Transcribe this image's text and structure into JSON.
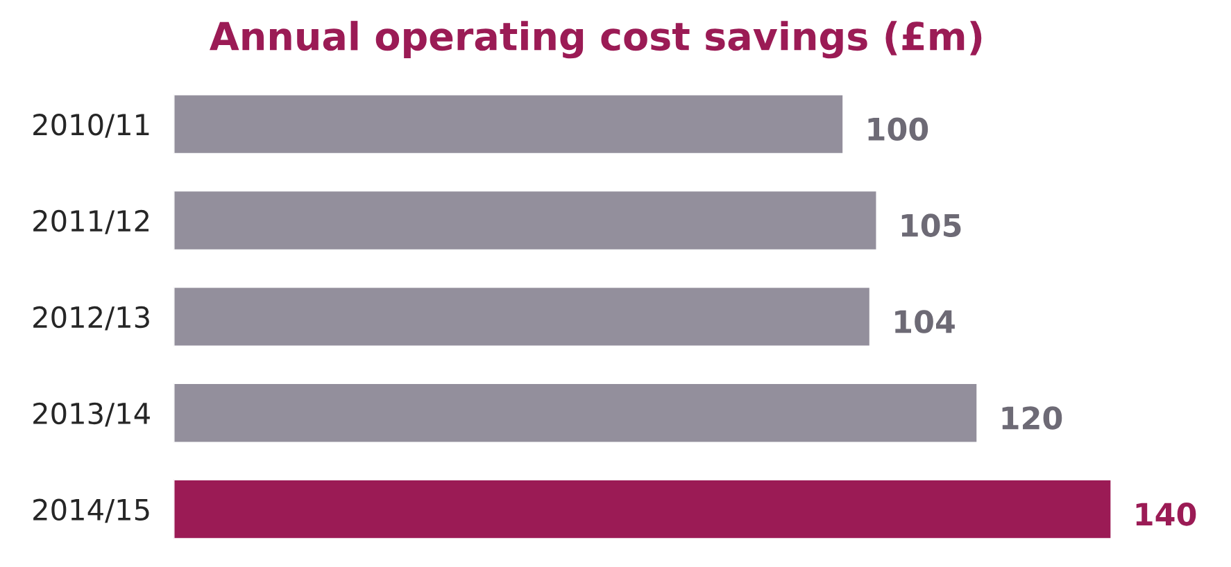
{
  "chart_data": {
    "type": "bar",
    "orientation": "horizontal",
    "title": "Annual operating cost savings (£m)",
    "categories": [
      "2010/11",
      "2011/12",
      "2012/13",
      "2013/14",
      "2014/15"
    ],
    "series": [
      {
        "colors": [
          "#938f9c",
          "#938f9c",
          "#938f9c",
          "#938f9c",
          "#9b1b55"
        ],
        "values": [
          100,
          105,
          104,
          120,
          140
        ]
      }
    ],
    "data_labels": true,
    "tick_labels": "y"
  }
}
